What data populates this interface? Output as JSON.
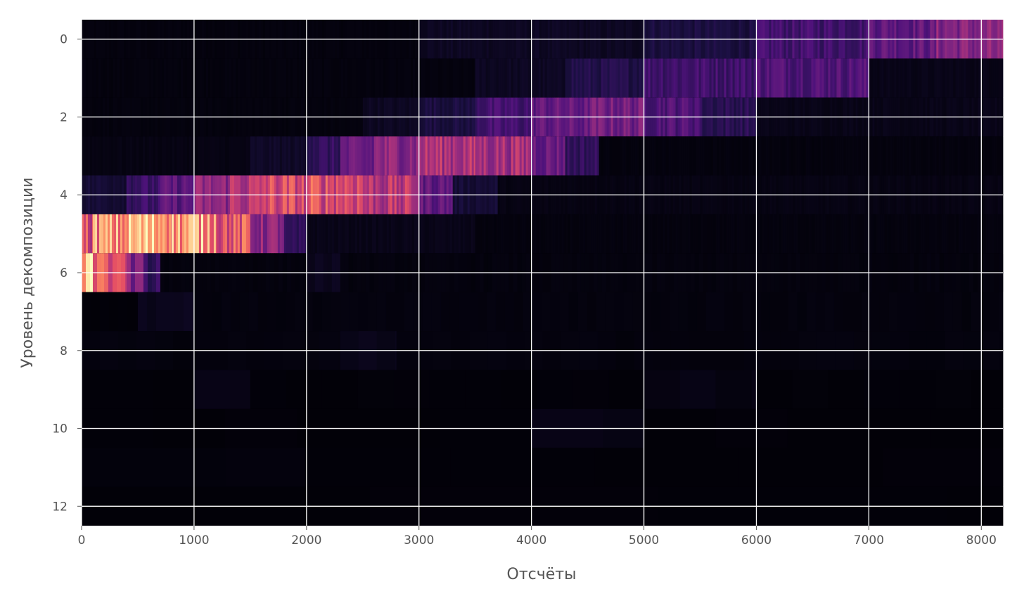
{
  "chart_data": {
    "type": "heatmap",
    "title": "",
    "xlabel": "Отсчёты",
    "ylabel": "Уровень декомпозиции",
    "xlim": [
      0,
      8192
    ],
    "ylim": [
      12.5,
      -0.5
    ],
    "x_ticks": [
      0,
      1000,
      2000,
      3000,
      4000,
      5000,
      6000,
      7000,
      8000
    ],
    "x_tick_labels": [
      "0",
      "1000",
      "2000",
      "3000",
      "4000",
      "5000",
      "6000",
      "7000",
      "8000"
    ],
    "y_ticks": [
      0,
      2,
      4,
      6,
      8,
      10,
      12
    ],
    "y_tick_labels": [
      "0",
      "2",
      "4",
      "6",
      "8",
      "10",
      "12"
    ],
    "grid": true,
    "grid_color": "#ffffff",
    "colormap": "magma",
    "background_color": "#000004",
    "levels": [
      {
        "level": 0,
        "segments": [
          [
            0,
            3000,
            0.02
          ],
          [
            3000,
            5000,
            0.06
          ],
          [
            5000,
            6000,
            0.12
          ],
          [
            6000,
            7000,
            0.22
          ],
          [
            7000,
            7600,
            0.3
          ],
          [
            7600,
            8192,
            0.38
          ]
        ]
      },
      {
        "level": 1,
        "segments": [
          [
            0,
            3500,
            0.02
          ],
          [
            3500,
            4300,
            0.06
          ],
          [
            4300,
            5000,
            0.14
          ],
          [
            5000,
            6000,
            0.22
          ],
          [
            6000,
            7000,
            0.26
          ],
          [
            7000,
            8192,
            0.04
          ]
        ]
      },
      {
        "level": 2,
        "segments": [
          [
            0,
            2500,
            0.02
          ],
          [
            2500,
            3000,
            0.06
          ],
          [
            3000,
            3500,
            0.12
          ],
          [
            3500,
            4000,
            0.22
          ],
          [
            4000,
            4500,
            0.3
          ],
          [
            4500,
            5000,
            0.34
          ],
          [
            5000,
            5500,
            0.26
          ],
          [
            5500,
            6000,
            0.16
          ],
          [
            6000,
            8192,
            0.04
          ]
        ]
      },
      {
        "level": 3,
        "segments": [
          [
            0,
            1500,
            0.03
          ],
          [
            1500,
            2000,
            0.07
          ],
          [
            2000,
            2300,
            0.18
          ],
          [
            2300,
            2600,
            0.3
          ],
          [
            2600,
            3000,
            0.4
          ],
          [
            3000,
            3500,
            0.48
          ],
          [
            3500,
            4000,
            0.46
          ],
          [
            4000,
            4300,
            0.32
          ],
          [
            4300,
            4600,
            0.18
          ],
          [
            4600,
            8192,
            0.02
          ]
        ]
      },
      {
        "level": 4,
        "segments": [
          [
            0,
            400,
            0.1
          ],
          [
            400,
            700,
            0.2
          ],
          [
            700,
            1000,
            0.28
          ],
          [
            1000,
            1300,
            0.4
          ],
          [
            1300,
            1600,
            0.5
          ],
          [
            1600,
            2000,
            0.58
          ],
          [
            2000,
            2500,
            0.6
          ],
          [
            2500,
            3000,
            0.5
          ],
          [
            3000,
            3300,
            0.3
          ],
          [
            3300,
            3700,
            0.1
          ],
          [
            3700,
            8192,
            0.03
          ]
        ]
      },
      {
        "level": 5,
        "segments": [
          [
            0,
            100,
            0.6
          ],
          [
            100,
            400,
            0.76
          ],
          [
            400,
            800,
            0.84
          ],
          [
            800,
            1200,
            0.8
          ],
          [
            1200,
            1500,
            0.62
          ],
          [
            1500,
            1800,
            0.4
          ],
          [
            1800,
            2000,
            0.16
          ],
          [
            2000,
            3500,
            0.04
          ],
          [
            3500,
            8192,
            0.02
          ]
        ]
      },
      {
        "level": 6,
        "segments": [
          [
            0,
            100,
            0.96
          ],
          [
            100,
            200,
            0.74
          ],
          [
            200,
            400,
            0.58
          ],
          [
            400,
            550,
            0.36
          ],
          [
            550,
            700,
            0.18
          ],
          [
            700,
            2000,
            0.02
          ],
          [
            2000,
            2300,
            0.05
          ],
          [
            2300,
            8192,
            0.02
          ]
        ]
      },
      {
        "level": 7,
        "segments": [
          [
            0,
            500,
            0.01
          ],
          [
            500,
            1000,
            0.05
          ],
          [
            1000,
            8192,
            0.02
          ]
        ]
      },
      {
        "level": 8,
        "segments": [
          [
            0,
            2300,
            0.02
          ],
          [
            2300,
            2800,
            0.04
          ],
          [
            2800,
            8192,
            0.02
          ]
        ]
      },
      {
        "level": 9,
        "segments": [
          [
            0,
            1000,
            0.01
          ],
          [
            1000,
            1500,
            0.03
          ],
          [
            1500,
            5000,
            0.01
          ],
          [
            5000,
            6000,
            0.03
          ],
          [
            6000,
            8192,
            0.01
          ]
        ]
      },
      {
        "level": 10,
        "segments": [
          [
            0,
            4000,
            0.01
          ],
          [
            4000,
            5000,
            0.03
          ],
          [
            5000,
            8192,
            0.01
          ]
        ]
      },
      {
        "level": 11,
        "segments": [
          [
            0,
            2000,
            0.02
          ],
          [
            2000,
            8192,
            0.01
          ]
        ]
      },
      {
        "level": 12,
        "segments": [
          [
            0,
            8192,
            0.01
          ]
        ]
      }
    ]
  }
}
